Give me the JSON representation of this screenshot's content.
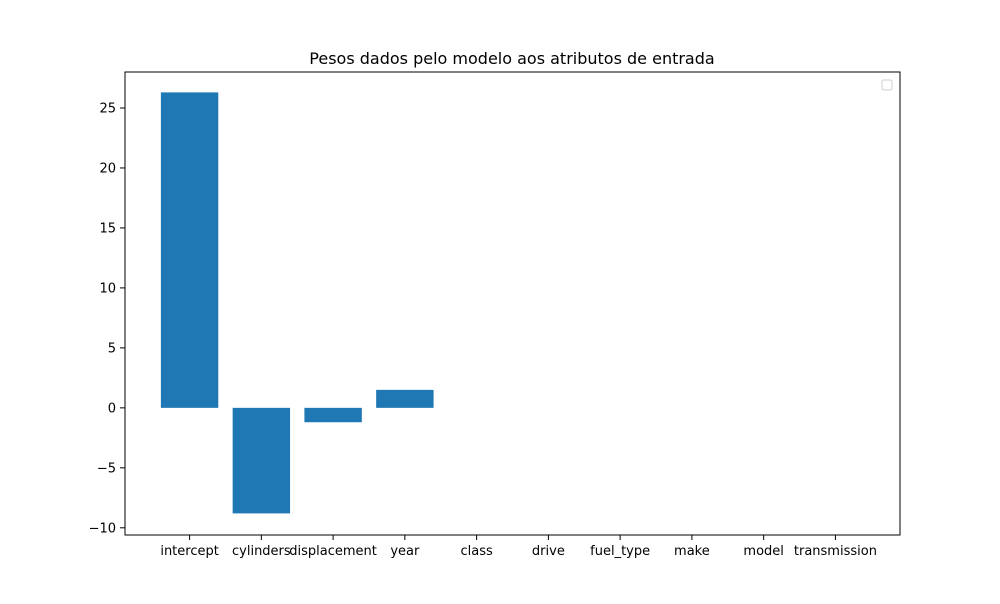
{
  "chart_data": {
    "type": "bar",
    "title": "Pesos dados pelo modelo aos atributos de entrada",
    "xlabel": "",
    "ylabel": "",
    "categories": [
      "intercept",
      "cylinders",
      "displacement",
      "year",
      "class",
      "drive",
      "fuel_type",
      "make",
      "model",
      "transmission"
    ],
    "values": [
      26.3,
      -8.8,
      -1.2,
      1.5,
      0,
      0,
      0,
      0,
      0,
      0
    ],
    "ylim": [
      -10.6,
      28.0
    ],
    "yticks": [
      -10,
      -5,
      0,
      5,
      10,
      15,
      20,
      25
    ],
    "ytick_labels": [
      "−10",
      "−5",
      "0",
      "5",
      "10",
      "15",
      "20",
      "25"
    ],
    "grid": false,
    "legend": {
      "placement": "upper right",
      "entries": []
    },
    "colors": {
      "bar": "#1f77b4",
      "axis": "#000000",
      "background": "#ffffff",
      "legend_border": "#cccccc"
    }
  }
}
